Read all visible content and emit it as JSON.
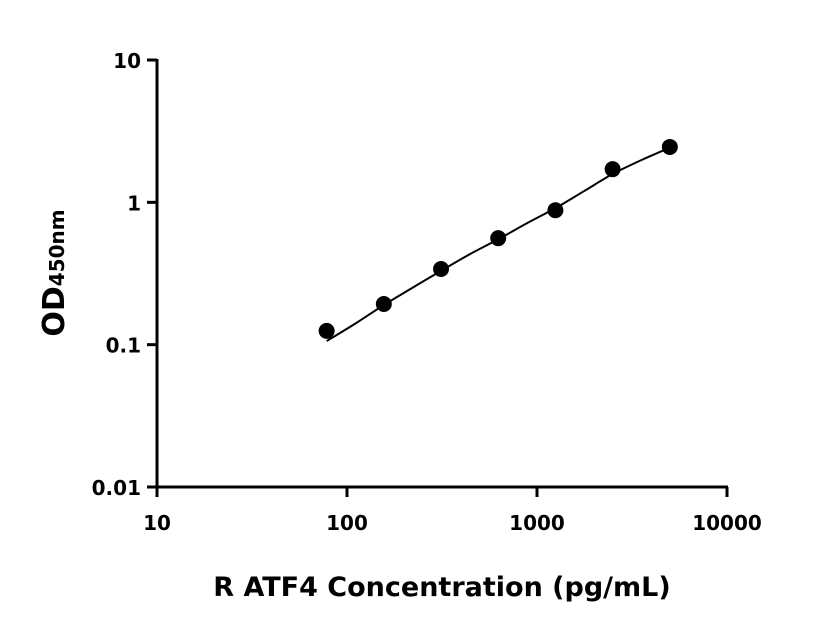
{
  "chart_data": {
    "type": "scatter",
    "title": "",
    "xlabel": "R ATF4 Concentration (pg/mL)",
    "ylabel_main": "OD",
    "ylabel_sub": "450nm",
    "x_scale": "log",
    "y_scale": "log",
    "xlim": [
      10,
      10000
    ],
    "ylim": [
      0.01,
      10
    ],
    "x_ticks": [
      10,
      100,
      1000,
      10000
    ],
    "x_tick_labels": [
      "10",
      "100",
      "1000",
      "10000"
    ],
    "y_ticks": [
      0.01,
      0.1,
      1,
      10
    ],
    "y_tick_labels": [
      "0.01",
      "0.1",
      "1",
      "10"
    ],
    "grid": false,
    "legend": "none",
    "points": {
      "x": [
        78.125,
        156.25,
        312.5,
        625,
        1250,
        2500,
        5000
      ],
      "y": [
        0.125,
        0.193,
        0.34,
        0.56,
        0.88,
        1.71,
        2.45
      ]
    },
    "fit_curve": {
      "x": [
        78.125,
        110,
        156.25,
        220,
        312.5,
        440,
        625,
        880,
        1250,
        1770,
        2500,
        3540,
        5000
      ],
      "y": [
        0.106,
        0.14,
        0.19,
        0.25,
        0.33,
        0.43,
        0.55,
        0.71,
        0.91,
        1.2,
        1.58,
        1.98,
        2.42
      ]
    },
    "colors": {
      "points": "#000000",
      "curve": "#000000",
      "axes": "#000000"
    }
  }
}
